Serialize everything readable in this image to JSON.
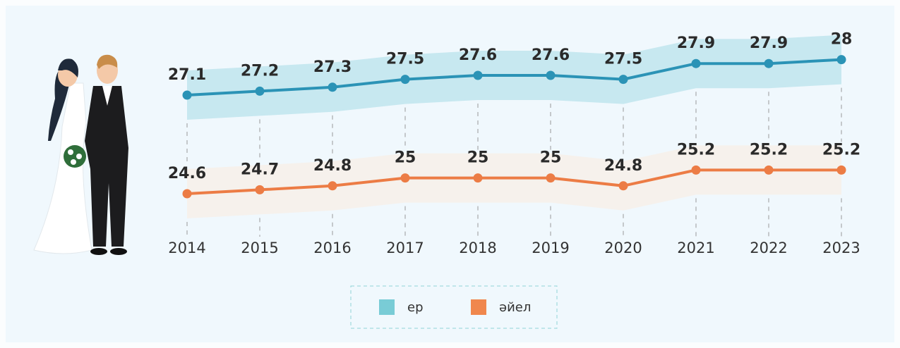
{
  "chart_data": {
    "type": "line",
    "categories": [
      "2014",
      "2015",
      "2016",
      "2017",
      "2018",
      "2019",
      "2020",
      "2021",
      "2022",
      "2023"
    ],
    "series": [
      {
        "name": "ер",
        "color": "#2b93b6",
        "band_color": "#c7e8f0",
        "legend_color": "#79ccd6",
        "values": [
          27.1,
          27.2,
          27.3,
          27.5,
          27.6,
          27.6,
          27.5,
          27.9,
          27.9,
          28
        ]
      },
      {
        "name": "әйел",
        "color": "#ec7c45",
        "band_color": "#f6f1ec",
        "legend_color": "#f0874d",
        "values": [
          24.6,
          24.7,
          24.8,
          25,
          25,
          25,
          24.8,
          25.2,
          25.2,
          25.2
        ]
      }
    ],
    "ylim": [
      24,
      28.5
    ]
  }
}
